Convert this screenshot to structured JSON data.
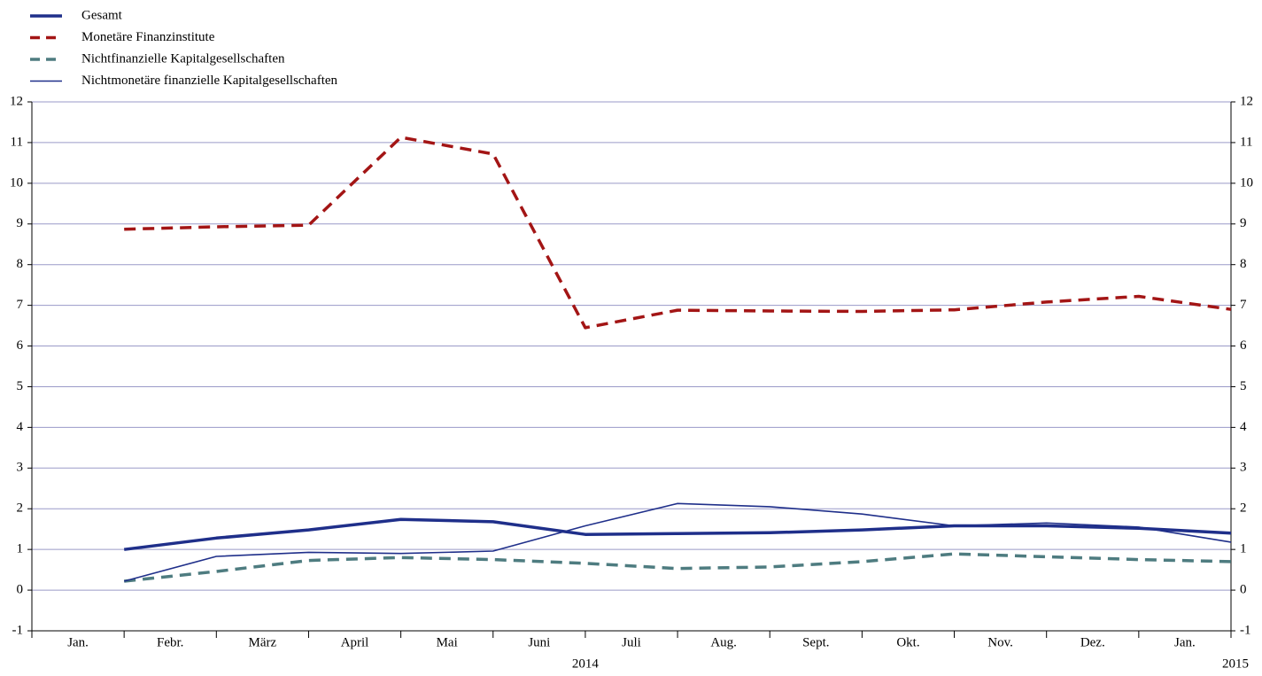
{
  "chart_data": {
    "type": "line",
    "categories": [
      "Jan.",
      "Febr.",
      "März",
      "April",
      "Mai",
      "Juni",
      "Juli",
      "Aug.",
      "Sept.",
      "Okt.",
      "Nov.",
      "Dez.",
      "Jan."
    ],
    "year_labels": [
      "2014",
      "2015"
    ],
    "series": [
      {
        "name": "Gesamt",
        "color": "#1f2f8a",
        "line_style": "solid",
        "line_weight": "thick",
        "values": [
          1.0,
          1.28,
          1.48,
          1.74,
          1.68,
          1.37,
          1.39,
          1.41,
          1.48,
          1.58,
          1.58,
          1.52,
          1.4
        ]
      },
      {
        "name": "Monetäre Finanzinstitute",
        "color": "#a31515",
        "line_style": "dashed",
        "line_weight": "thick",
        "values": [
          8.87,
          8.93,
          8.97,
          11.13,
          10.72,
          6.45,
          6.88,
          6.86,
          6.85,
          6.89,
          7.08,
          7.22,
          6.9
        ]
      },
      {
        "name": "Nichtfinanzielle Kapitalgesellschaften",
        "color": "#4e7c80",
        "line_style": "dashed",
        "line_weight": "thick",
        "values": [
          0.22,
          0.46,
          0.73,
          0.8,
          0.75,
          0.66,
          0.53,
          0.57,
          0.7,
          0.89,
          0.82,
          0.75,
          0.7
        ]
      },
      {
        "name": "Nichtmonetäre finanzielle Kapitalgesellschaften",
        "color": "#1f2f8a",
        "line_style": "solid",
        "line_weight": "thin",
        "values": [
          0.22,
          0.83,
          0.93,
          0.9,
          0.96,
          1.58,
          2.13,
          2.05,
          1.87,
          1.58,
          1.65,
          1.55,
          1.18
        ]
      }
    ],
    "ylim": [
      -1,
      12
    ],
    "yticks": [
      -1,
      0,
      1,
      2,
      3,
      4,
      5,
      6,
      7,
      8,
      9,
      10,
      11,
      12
    ],
    "grid": true,
    "secondary_tick_labels": true
  }
}
